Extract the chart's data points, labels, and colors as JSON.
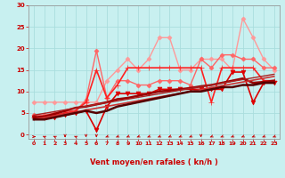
{
  "title": "",
  "xlabel": "Vent moyen/en rafales ( kn/h )",
  "ylabel": "",
  "xlim": [
    -0.5,
    23.5
  ],
  "ylim": [
    -1,
    30
  ],
  "yticks": [
    0,
    5,
    10,
    15,
    20,
    25,
    30
  ],
  "xticks": [
    0,
    1,
    2,
    3,
    4,
    5,
    6,
    7,
    8,
    9,
    10,
    11,
    12,
    13,
    14,
    15,
    16,
    17,
    18,
    19,
    20,
    21,
    22,
    23
  ],
  "bg_color": "#c8f0f0",
  "grid_color": "#aadddd",
  "series": [
    {
      "label": "light_pink_scatter",
      "x": [
        0,
        1,
        2,
        3,
        4,
        5,
        6,
        7,
        8,
        9,
        10,
        11,
        12,
        13,
        14,
        15,
        16,
        17,
        18,
        19,
        20,
        21,
        22,
        23
      ],
      "y": [
        7.5,
        7.5,
        7.5,
        7.5,
        7.5,
        7.5,
        7.5,
        12.5,
        15.0,
        17.5,
        15.0,
        17.5,
        22.5,
        22.5,
        15.0,
        15.0,
        17.5,
        17.5,
        17.5,
        15.0,
        27.0,
        22.5,
        17.5,
        15.0
      ],
      "color": "#ff9999",
      "lw": 1.0,
      "marker": "D",
      "ms": 2.5
    },
    {
      "label": "medium_pink_scatter",
      "x": [
        0,
        1,
        2,
        3,
        4,
        5,
        6,
        7,
        8,
        9,
        10,
        11,
        12,
        13,
        14,
        15,
        16,
        17,
        18,
        19,
        20,
        21,
        22,
        23
      ],
      "y": [
        4.5,
        4.5,
        5.0,
        5.5,
        5.5,
        8.0,
        19.5,
        8.5,
        12.5,
        12.5,
        11.5,
        11.5,
        12.5,
        12.5,
        12.5,
        11.5,
        17.5,
        15.5,
        18.5,
        18.5,
        17.5,
        17.5,
        15.5,
        15.5
      ],
      "color": "#ff6666",
      "lw": 1.0,
      "marker": "D",
      "ms": 2.5
    },
    {
      "label": "red_star_scatter",
      "x": [
        0,
        1,
        2,
        3,
        4,
        5,
        6,
        7,
        8,
        9,
        10,
        11,
        12,
        13,
        14,
        15,
        16,
        17,
        18,
        19,
        20,
        21,
        22,
        23
      ],
      "y": [
        4.0,
        4.0,
        4.5,
        5.0,
        5.5,
        7.5,
        15.0,
        8.5,
        11.5,
        15.5,
        15.5,
        15.5,
        15.5,
        15.5,
        15.5,
        15.5,
        15.5,
        7.5,
        15.5,
        15.5,
        15.5,
        15.5,
        12.5,
        12.5
      ],
      "color": "#ff2222",
      "lw": 1.2,
      "marker": "+",
      "ms": 4
    },
    {
      "label": "red_triangle_scatter",
      "x": [
        0,
        1,
        2,
        3,
        4,
        5,
        6,
        7,
        8,
        9,
        10,
        11,
        12,
        13,
        14,
        15,
        16,
        17,
        18,
        19,
        20,
        21,
        22,
        23
      ],
      "y": [
        4.0,
        4.0,
        4.0,
        4.5,
        5.0,
        5.5,
        1.0,
        6.5,
        9.5,
        9.5,
        9.5,
        9.5,
        10.5,
        10.5,
        10.5,
        10.5,
        10.5,
        10.5,
        10.5,
        14.5,
        14.5,
        7.5,
        12.0,
        12.0
      ],
      "color": "#dd0000",
      "lw": 1.2,
      "marker": "v",
      "ms": 3.5
    },
    {
      "label": "dark_red_smooth1",
      "x": [
        0,
        1,
        2,
        3,
        4,
        5,
        6,
        7,
        8,
        9,
        10,
        11,
        12,
        13,
        14,
        15,
        16,
        17,
        18,
        19,
        20,
        21,
        22,
        23
      ],
      "y": [
        4.0,
        4.2,
        4.8,
        5.5,
        6.2,
        6.5,
        7.0,
        7.5,
        8.2,
        8.5,
        9.0,
        9.5,
        10.0,
        10.2,
        10.5,
        10.8,
        11.2,
        11.5,
        12.0,
        12.5,
        13.0,
        12.0,
        12.2,
        12.5
      ],
      "color": "#990000",
      "lw": 1.8,
      "marker": null,
      "ms": 0
    },
    {
      "label": "straight_line1",
      "x": [
        0,
        23
      ],
      "y": [
        3.5,
        13.5
      ],
      "color": "#cc3333",
      "lw": 1.2,
      "marker": null,
      "ms": 0,
      "linestyle": "-"
    },
    {
      "label": "straight_line2",
      "x": [
        0,
        23
      ],
      "y": [
        4.5,
        14.0
      ],
      "color": "#aa2222",
      "lw": 1.0,
      "marker": null,
      "ms": 0,
      "linestyle": "-"
    },
    {
      "label": "darkest_smooth2",
      "x": [
        0,
        1,
        2,
        3,
        4,
        5,
        6,
        7,
        8,
        9,
        10,
        11,
        12,
        13,
        14,
        15,
        16,
        17,
        18,
        19,
        20,
        21,
        22,
        23
      ],
      "y": [
        3.5,
        3.5,
        4.0,
        4.5,
        5.0,
        5.5,
        5.0,
        5.5,
        6.5,
        7.0,
        7.5,
        8.0,
        8.5,
        9.0,
        9.5,
        10.0,
        10.0,
        10.5,
        11.0,
        11.0,
        11.5,
        11.5,
        12.0,
        12.0
      ],
      "color": "#550000",
      "lw": 1.8,
      "marker": null,
      "ms": 0
    }
  ],
  "wind_symbols": [
    "→",
    "↖",
    "↖",
    "↓",
    "↖",
    "↓",
    "↓",
    "↙",
    "↙",
    "↙",
    "↙",
    "↙",
    "↙",
    "↙",
    "↙",
    "↙",
    "↓",
    "↙",
    "↙",
    "↙",
    "↙",
    "↙",
    "↙",
    "↙"
  ]
}
